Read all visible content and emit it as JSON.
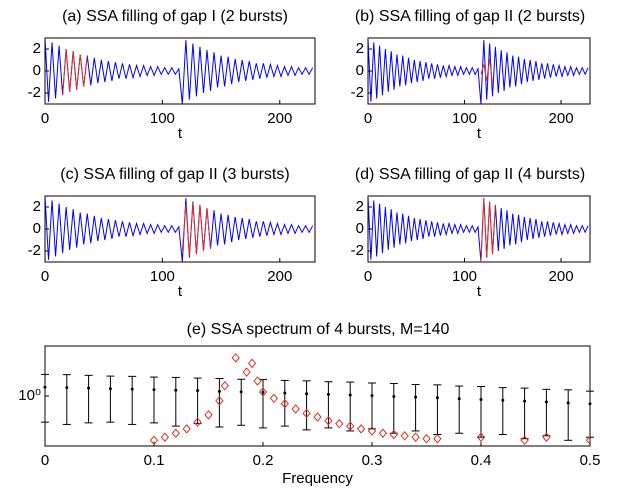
{
  "chart_data": [
    {
      "type": "line",
      "title": "(a) SSA filling of gap I (2 bursts)",
      "xlabel": "t",
      "xlim": [
        0,
        230
      ],
      "xticks": [
        0,
        100,
        200
      ],
      "ylim": [
        -3,
        3
      ],
      "yticks": [
        -2,
        0,
        2
      ],
      "series": [
        {
          "color": "#0000ff",
          "x": [
            0,
            3,
            6,
            9,
            12,
            15,
            18,
            21,
            24,
            27,
            30,
            33,
            36,
            39,
            42,
            45,
            48,
            51,
            54,
            57,
            60,
            63,
            66,
            69,
            72,
            75,
            78,
            81,
            84,
            87,
            90,
            93,
            96,
            99,
            102,
            105,
            108,
            111,
            114,
            117,
            120,
            123,
            126,
            129,
            132,
            135,
            138,
            141,
            144,
            147,
            150,
            153,
            156,
            159,
            162,
            165,
            168,
            171,
            174,
            177,
            180,
            183,
            186,
            189,
            192,
            195,
            198,
            201,
            204,
            207,
            210,
            213,
            216,
            219,
            222,
            225,
            228
          ],
          "values": [
            3,
            -2.8,
            2.6,
            -2.5,
            2.3,
            -2.2,
            2,
            -1.9,
            1.8,
            -1.7,
            1.5,
            -1.4,
            1.4,
            -1.3,
            1.2,
            -1.1,
            1,
            -1,
            0.9,
            -0.9,
            0.8,
            -0.7,
            0.7,
            -0.7,
            0.6,
            -0.6,
            0.5,
            -0.5,
            0.5,
            -0.4,
            0.4,
            -0.4,
            0.4,
            -0.3,
            0.3,
            -0.3,
            0.3,
            -0.3,
            0.2,
            -3,
            2.8,
            -2.6,
            2.5,
            -2.3,
            2.2,
            -2,
            1.9,
            -1.8,
            1.7,
            -1.5,
            1.4,
            -1.4,
            1.3,
            -1.2,
            1.1,
            -1,
            1,
            -0.9,
            0.9,
            -0.8,
            0.7,
            -0.7,
            0.7,
            -0.6,
            0.6,
            -0.5,
            0.5,
            -0.5,
            0.4,
            -0.4,
            0.4,
            -0.4,
            0.3,
            -0.3,
            0.3,
            -0.3,
            0.3
          ]
        },
        {
          "color": "#e03020",
          "x": [
            15,
            18,
            21,
            24,
            27,
            30,
            33,
            36
          ],
          "values": [
            -2.2,
            2,
            -1.9,
            1.8,
            -1.7,
            1.5,
            -1.4,
            1.4
          ]
        }
      ]
    },
    {
      "type": "line",
      "title": "(b) SSA filling of gap II (2 bursts)",
      "xlabel": "t",
      "xlim": [
        0,
        230
      ],
      "xticks": [
        0,
        100,
        200
      ],
      "ylim": [
        -3,
        3
      ],
      "yticks": [
        -2,
        0,
        2
      ],
      "series": [
        {
          "color": "#0000ff",
          "x": [
            0,
            3,
            6,
            9,
            12,
            15,
            18,
            21,
            24,
            27,
            30,
            33,
            36,
            39,
            42,
            45,
            48,
            51,
            54,
            57,
            60,
            63,
            66,
            69,
            72,
            75,
            78,
            81,
            84,
            87,
            90,
            93,
            96,
            99,
            102,
            105,
            108,
            111,
            114,
            117,
            120,
            123,
            126,
            129,
            132,
            135,
            138,
            141,
            144,
            147,
            150,
            153,
            156,
            159,
            162,
            165,
            168,
            171,
            174,
            177,
            180,
            183,
            186,
            189,
            192,
            195,
            198,
            201,
            204,
            207,
            210,
            213,
            216,
            219,
            222,
            225,
            228
          ],
          "values": [
            3,
            -2.8,
            2.6,
            -2.5,
            2.3,
            -2.2,
            2,
            -1.9,
            1.8,
            -1.7,
            1.5,
            -1.4,
            1.4,
            -1.3,
            1.2,
            -1.1,
            1,
            -1,
            0.9,
            -0.9,
            0.8,
            -0.7,
            0.7,
            -0.7,
            0.6,
            -0.6,
            0.5,
            -0.5,
            0.5,
            -0.4,
            0.4,
            -0.4,
            0.4,
            -0.3,
            0.3,
            -0.3,
            0.3,
            -0.3,
            0.2,
            -3,
            2.8,
            -2.6,
            2.5,
            -2.3,
            2.2,
            -2,
            1.9,
            -1.8,
            1.7,
            -1.5,
            1.4,
            -1.4,
            1.3,
            -1.2,
            1.1,
            -1,
            1,
            -0.9,
            0.9,
            -0.8,
            0.7,
            -0.7,
            0.7,
            -0.6,
            0.6,
            -0.5,
            0.5,
            -0.5,
            0.4,
            -0.4,
            0.4,
            -0.4,
            0.3,
            -0.3,
            0.3,
            -0.3,
            0.3
          ]
        },
        {
          "color": "#e03020",
          "x": [
            117,
            120,
            123,
            126,
            129
          ],
          "values": [
            -0.3,
            0.6,
            -0.9,
            1.1,
            -1.2
          ]
        }
      ]
    },
    {
      "type": "line",
      "title": "(c) SSA filling of gap II (3 bursts)",
      "xlabel": "t",
      "xlim": [
        0,
        230
      ],
      "xticks": [
        0,
        100,
        200
      ],
      "ylim": [
        -3,
        3
      ],
      "yticks": [
        -2,
        0,
        2
      ],
      "series": [
        {
          "color": "#0000ff",
          "x": [
            0,
            3,
            6,
            9,
            12,
            15,
            18,
            21,
            24,
            27,
            30,
            33,
            36,
            39,
            42,
            45,
            48,
            51,
            54,
            57,
            60,
            63,
            66,
            69,
            72,
            75,
            78,
            81,
            84,
            87,
            90,
            93,
            96,
            99,
            102,
            105,
            108,
            111,
            114,
            117,
            120,
            123,
            126,
            129,
            132,
            135,
            138,
            141,
            144,
            147,
            150,
            153,
            156,
            159,
            162,
            165,
            168,
            171,
            174,
            177,
            180,
            183,
            186,
            189,
            192,
            195,
            198,
            201,
            204,
            207,
            210,
            213,
            216,
            219,
            222,
            225,
            228
          ],
          "values": [
            3,
            -2.8,
            2.6,
            -2.5,
            2.3,
            -2.2,
            2,
            -1.9,
            1.8,
            -1.7,
            1.5,
            -1.4,
            1.4,
            -1.3,
            1.2,
            -1.1,
            1,
            -1,
            0.9,
            -0.9,
            0.8,
            -0.7,
            0.7,
            -0.7,
            0.6,
            -0.6,
            0.5,
            -0.5,
            0.5,
            -0.4,
            0.4,
            -0.4,
            0.4,
            -0.3,
            0.3,
            -0.3,
            0.3,
            -0.3,
            0.2,
            -3,
            2.8,
            -2.6,
            2.5,
            -2.3,
            2.2,
            -2,
            1.9,
            -1.8,
            1.7,
            -1.5,
            1.4,
            -1.4,
            1.3,
            -1.2,
            1.1,
            -1,
            1,
            -0.9,
            0.9,
            -0.8,
            0.7,
            -0.7,
            0.7,
            -0.6,
            0.6,
            -0.5,
            0.5,
            -0.5,
            0.4,
            -0.4,
            0.4,
            -0.4,
            0.3,
            -0.3,
            0.3,
            -0.3,
            0.3
          ]
        },
        {
          "color": "#e03020",
          "x": [
            117,
            120,
            123,
            126,
            129,
            132,
            135,
            138,
            141
          ],
          "values": [
            -2,
            2.2,
            -2.4,
            2.4,
            -2.3,
            2.2,
            -2,
            1.9,
            -1.8
          ]
        }
      ]
    },
    {
      "type": "line",
      "title": "(d) SSA filling of gap II (4 bursts)",
      "xlabel": "t",
      "xlim": [
        0,
        230
      ],
      "xticks": [
        0,
        100,
        200
      ],
      "ylim": [
        -3,
        3
      ],
      "yticks": [
        -2,
        0,
        2
      ],
      "series": [
        {
          "color": "#0000ff",
          "x": [
            0,
            3,
            6,
            9,
            12,
            15,
            18,
            21,
            24,
            27,
            30,
            33,
            36,
            39,
            42,
            45,
            48,
            51,
            54,
            57,
            60,
            63,
            66,
            69,
            72,
            75,
            78,
            81,
            84,
            87,
            90,
            93,
            96,
            99,
            102,
            105,
            108,
            111,
            114,
            117,
            120,
            123,
            126,
            129,
            132,
            135,
            138,
            141,
            144,
            147,
            150,
            153,
            156,
            159,
            162,
            165,
            168,
            171,
            174,
            177,
            180,
            183,
            186,
            189,
            192,
            195,
            198,
            201,
            204,
            207,
            210,
            213,
            216,
            219,
            222,
            225,
            228
          ],
          "values": [
            3,
            -2.8,
            2.6,
            -2.5,
            2.3,
            -2.2,
            2,
            -1.9,
            1.8,
            -1.7,
            1.5,
            -1.4,
            1.4,
            -1.3,
            1.2,
            -1.1,
            1,
            -1,
            0.9,
            -0.9,
            0.8,
            -0.7,
            0.7,
            -0.7,
            0.6,
            -0.6,
            0.5,
            -0.5,
            0.5,
            -0.4,
            0.4,
            -0.4,
            0.4,
            -0.3,
            0.3,
            -0.3,
            0.3,
            -0.3,
            0.2,
            -3,
            2.8,
            -2.6,
            2.5,
            -2.3,
            2.2,
            -2,
            1.9,
            -1.8,
            1.7,
            -1.5,
            1.4,
            -1.4,
            1.3,
            -1.2,
            1.1,
            -1,
            1,
            -0.9,
            0.9,
            -0.8,
            0.7,
            -0.7,
            0.7,
            -0.6,
            0.6,
            -0.5,
            0.5,
            -0.5,
            0.4,
            -0.4,
            0.4,
            -0.4,
            0.3,
            -0.3,
            0.3,
            -0.3,
            0.3
          ]
        },
        {
          "color": "#e03020",
          "x": [
            117,
            120,
            123,
            126,
            129,
            132
          ],
          "values": [
            -3,
            2.8,
            -2.6,
            2.5,
            -2.3,
            2.2
          ]
        }
      ]
    },
    {
      "type": "errorbar",
      "title": "(e) SSA spectrum of 4 bursts, M=140",
      "xlabel": "Frequency",
      "xlim": [
        0,
        0.5
      ],
      "xticks": [
        0,
        0.1,
        0.2,
        0.3,
        0.4,
        0.5
      ],
      "ylim": [
        0.1,
        10
      ],
      "log_y": true,
      "yticks": [
        {
          "value": 1,
          "label": "10⁰"
        }
      ],
      "series": [
        {
          "color": "#000000",
          "x": [
            0,
            0.02,
            0.04,
            0.06,
            0.08,
            0.1,
            0.12,
            0.14,
            0.16,
            0.18,
            0.2,
            0.22,
            0.24,
            0.26,
            0.28,
            0.3,
            0.32,
            0.34,
            0.36,
            0.38,
            0.4,
            0.42,
            0.44,
            0.46,
            0.48,
            0.5
          ],
          "values": [
            1.5,
            1.47,
            1.44,
            1.4,
            1.37,
            1.34,
            1.3,
            1.28,
            1.24,
            1.21,
            1.18,
            1.15,
            1.11,
            1.08,
            1.05,
            1.02,
            0.98,
            0.95,
            0.92,
            0.88,
            0.85,
            0.82,
            0.79,
            0.76,
            0.73,
            0.7
          ],
          "errors": [
            1.2,
            1.2,
            1.15,
            1.1,
            1.1,
            1.05,
            1.05,
            1,
            1,
            0.95,
            0.95,
            0.9,
            0.9,
            0.85,
            0.85,
            0.8,
            0.8,
            0.75,
            0.75,
            0.7,
            0.7,
            0.65,
            0.65,
            0.6,
            0.6,
            0.55
          ]
        },
        {
          "color": "#e03020",
          "marker": "diamond",
          "x": [
            0.1,
            0.11,
            0.12,
            0.13,
            0.14,
            0.15,
            0.16,
            0.165,
            0.175,
            0.185,
            0.19,
            0.195,
            0.2,
            0.21,
            0.22,
            0.23,
            0.24,
            0.25,
            0.26,
            0.27,
            0.28,
            0.29,
            0.3,
            0.31,
            0.32,
            0.33,
            0.34,
            0.35,
            0.36,
            0.4,
            0.44,
            0.46,
            0.5
          ],
          "values": [
            0.13,
            0.15,
            0.18,
            0.22,
            0.3,
            0.42,
            0.8,
            1.6,
            5.8,
            3,
            4.5,
            2,
            1.2,
            0.9,
            0.7,
            0.55,
            0.45,
            0.38,
            0.32,
            0.28,
            0.25,
            0.22,
            0.2,
            0.18,
            0.17,
            0.16,
            0.15,
            0.14,
            0.14,
            0.15,
            0.13,
            0.15,
            0.13
          ]
        }
      ]
    }
  ]
}
